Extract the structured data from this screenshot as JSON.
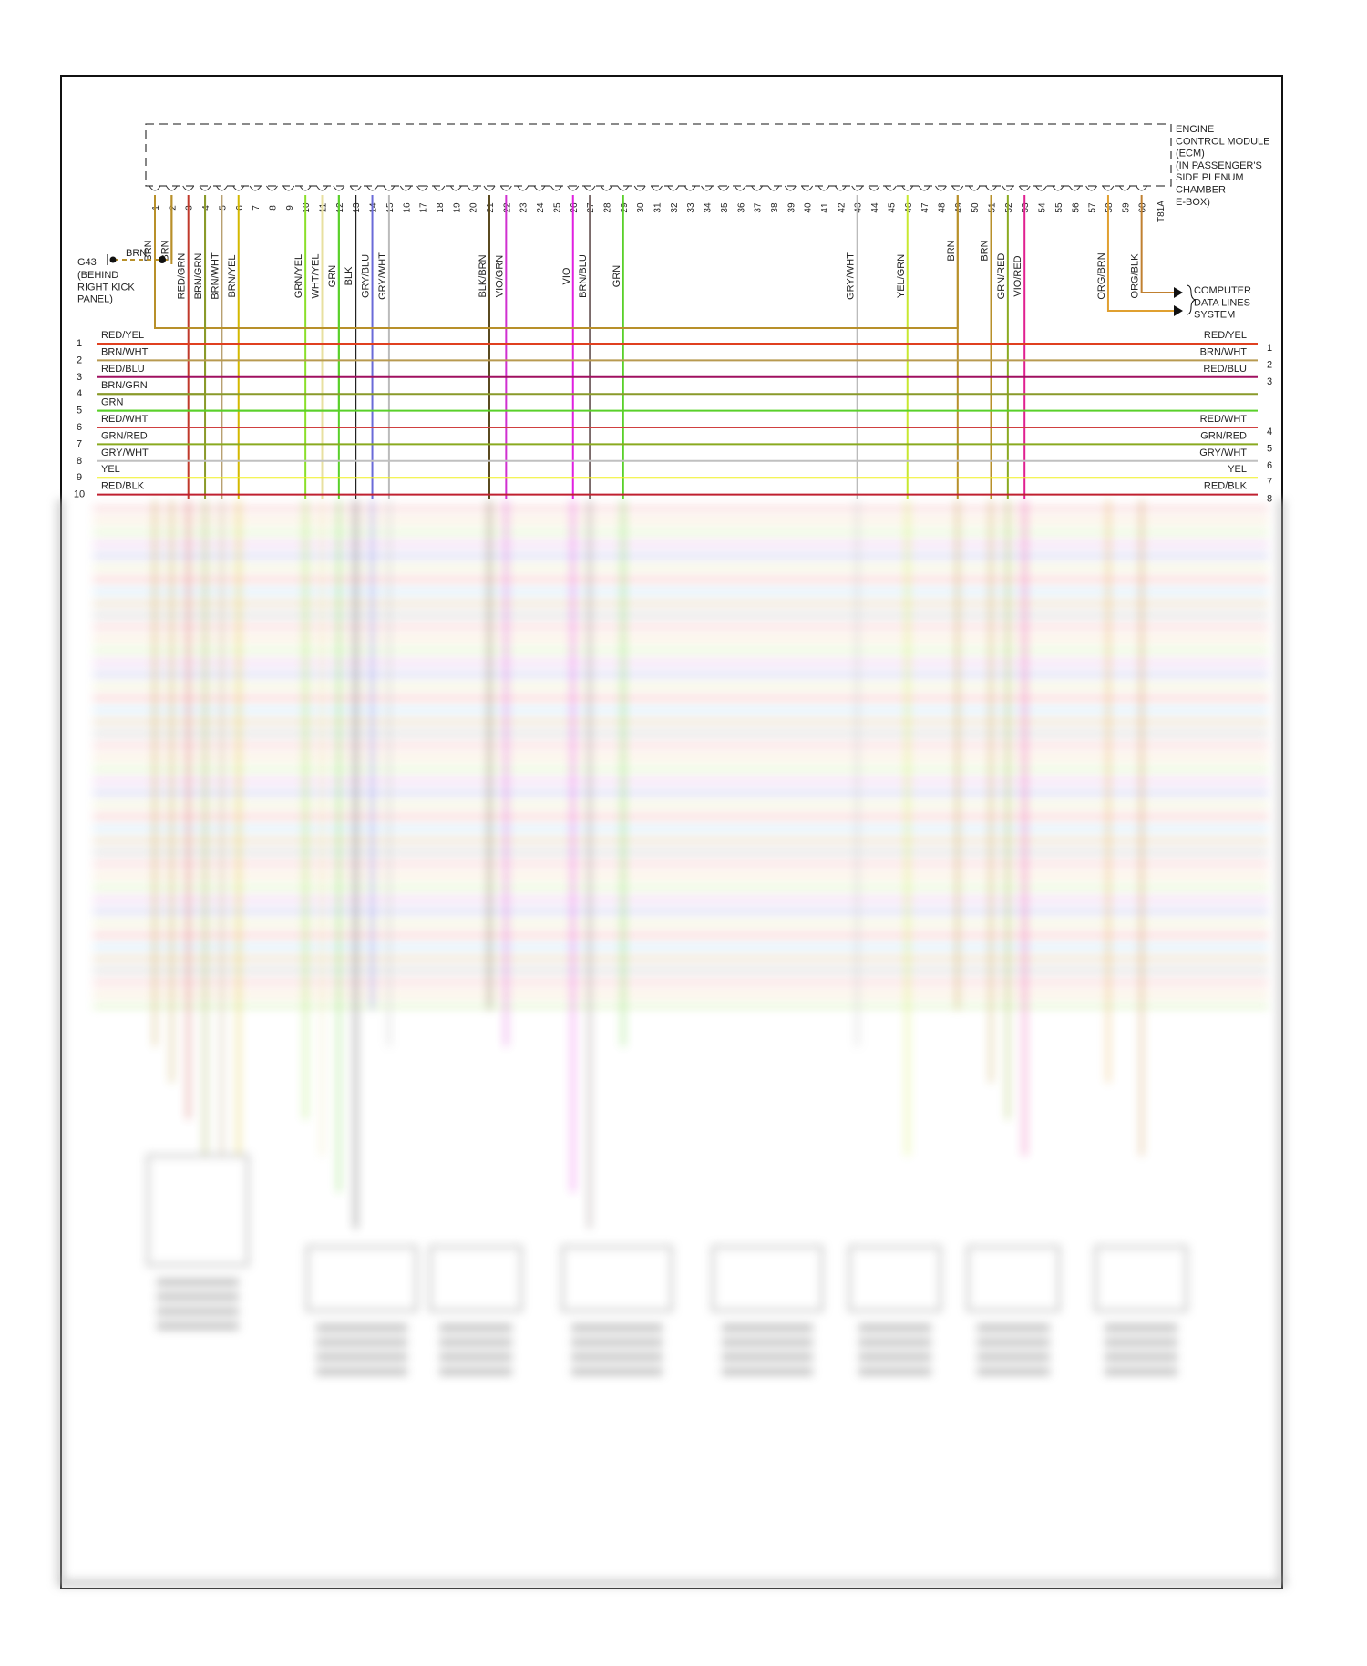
{
  "ecm": {
    "title_lines": [
      "ENGINE",
      "CONTROL MODULE",
      "(ECM)",
      "(IN PASSENGER'S",
      "SIDE PLENUM",
      "CHAMBER",
      "E-BOX)"
    ],
    "connector": "T81A",
    "pin_count": 60
  },
  "ground": {
    "id": "G43",
    "location_lines": [
      "(BEHIND",
      "RIGHT KICK",
      "PANEL)"
    ],
    "wire": "BRN"
  },
  "ecm_pins": [
    {
      "pin": 1,
      "wire": "BRN",
      "color": "#b8902a"
    },
    {
      "pin": 2,
      "wire": "BRN",
      "color": "#b8902a"
    },
    {
      "pin": 3,
      "wire": "RED/GRN",
      "color": "#c0392b"
    },
    {
      "pin": 4,
      "wire": "BRN/GRN",
      "color": "#8a9a2a"
    },
    {
      "pin": 5,
      "wire": "BRN/WHT",
      "color": "#b8a070"
    },
    {
      "pin": 6,
      "wire": "BRN/YEL",
      "color": "#d4b800"
    },
    {
      "pin": 10,
      "wire": "GRN/YEL",
      "color": "#8adf2a"
    },
    {
      "pin": 11,
      "wire": "WHT/YEL",
      "color": "#e8e0a0"
    },
    {
      "pin": 12,
      "wire": "GRN",
      "color": "#5ad02a"
    },
    {
      "pin": 13,
      "wire": "BLK",
      "color": "#222222"
    },
    {
      "pin": 14,
      "wire": "GRY/BLU",
      "color": "#6a6ad8"
    },
    {
      "pin": 15,
      "wire": "GRY/WHT",
      "color": "#bbbbbb"
    },
    {
      "pin": 21,
      "wire": "BLK/BRN",
      "color": "#5a4a20"
    },
    {
      "pin": 22,
      "wire": "VIO/GRN",
      "color": "#d030d0"
    },
    {
      "pin": 26,
      "wire": "VIO",
      "color": "#e020e0"
    },
    {
      "pin": 27,
      "wire": "BRN/BLU",
      "color": "#7a6a6a"
    },
    {
      "pin": 29,
      "wire": "GRN",
      "color": "#5ad02a"
    },
    {
      "pin": 43,
      "wire": "GRY/WHT",
      "color": "#bbbbbb"
    },
    {
      "pin": 46,
      "wire": "YEL/GRN",
      "color": "#c8e830"
    },
    {
      "pin": 49,
      "wire": "BRN",
      "color": "#b8902a"
    },
    {
      "pin": 51,
      "wire": "BRN",
      "color": "#b8902a"
    },
    {
      "pin": 52,
      "wire": "GRN/RED",
      "color": "#8aaa20"
    },
    {
      "pin": 53,
      "wire": "VIO/RED",
      "color": "#e02090"
    },
    {
      "pin": 58,
      "wire": "ORG/BRN",
      "color": "#e0a030"
    },
    {
      "pin": 60,
      "wire": "ORG/BLK",
      "color": "#c08030"
    }
  ],
  "data_lines": {
    "label_lines": [
      "COMPUTER",
      "DATA LINES",
      "SYSTEM"
    ]
  },
  "left_harness": [
    {
      "num": "1",
      "wire": "RED/YEL",
      "color": "#e04020"
    },
    {
      "num": "2",
      "wire": "BRN/WHT",
      "color": "#b89a50"
    },
    {
      "num": "3",
      "wire": "RED/BLU",
      "color": "#a01060"
    },
    {
      "num": "4",
      "wire": "BRN/GRN",
      "color": "#8a9a2a"
    },
    {
      "num": "5",
      "wire": "GRN",
      "color": "#5ad02a"
    },
    {
      "num": "6",
      "wire": "RED/WHT",
      "color": "#d04040"
    },
    {
      "num": "7",
      "wire": "GRN/RED",
      "color": "#8aaa20"
    },
    {
      "num": "8",
      "wire": "GRY/WHT",
      "color": "#c0c0c0"
    },
    {
      "num": "9",
      "wire": "YEL",
      "color": "#f0f020"
    },
    {
      "num": "10",
      "wire": "RED/BLK",
      "color": "#c02030"
    }
  ],
  "right_harness": [
    {
      "num": "1",
      "wire": "RED/YEL"
    },
    {
      "num": "2",
      "wire": "BRN/WHT"
    },
    {
      "num": "3",
      "wire": "RED/BLU"
    },
    {
      "num": "4",
      "wire": "RED/WHT"
    },
    {
      "num": "5",
      "wire": "GRN/RED"
    },
    {
      "num": "6",
      "wire": "GRY/WHT"
    },
    {
      "num": "7",
      "wire": "YEL"
    },
    {
      "num": "8",
      "wire": "RED/BLK"
    }
  ]
}
